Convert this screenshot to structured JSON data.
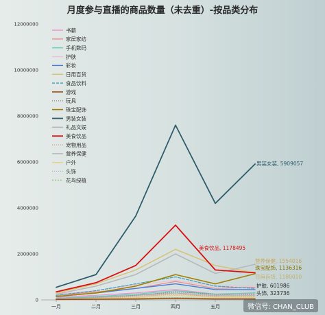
{
  "chart_data": {
    "type": "line",
    "title": "月度参与直播的商品数量（未去重）-按品类分布",
    "xlabel": "",
    "ylabel": "",
    "categories": [
      "一月",
      "二月",
      "三月",
      "四月",
      "五月",
      "六月"
    ],
    "ylim": [
      0,
      12000000
    ],
    "yticks": [
      "0",
      "2000000",
      "4000000",
      "6000000",
      "8000000",
      "10000000",
      "12000000"
    ],
    "ytick_values": [
      0,
      2000000,
      4000000,
      6000000,
      8000000,
      10000000,
      12000000
    ],
    "legend_position": "top-left",
    "grid": false,
    "series": [
      {
        "name": "书籍",
        "color": "#f28ad0",
        "dash": "",
        "width": 1.2,
        "values": [
          120000,
          200000,
          300000,
          450000,
          250000,
          300000
        ]
      },
      {
        "name": "家居家纺",
        "color": "#e88a8a",
        "dash": "",
        "width": 1.2,
        "values": [
          200000,
          350000,
          500000,
          800000,
          500000,
          550000
        ]
      },
      {
        "name": "手机数码",
        "color": "#5fd4b8",
        "dash": "",
        "width": 1.2,
        "values": [
          80000,
          150000,
          250000,
          400000,
          250000,
          300000
        ]
      },
      {
        "name": "护肤",
        "color": "#f0c0d0",
        "dash": "",
        "width": 1.2,
        "values": [
          250000,
          400000,
          650000,
          850000,
          600000,
          601986
        ]
      },
      {
        "name": "彩妆",
        "color": "#4a7ad8",
        "dash": "",
        "width": 1.4,
        "values": [
          150000,
          300000,
          500000,
          700000,
          450000,
          450000
        ]
      },
      {
        "name": "日用百货",
        "color": "#d8c070",
        "dash": "",
        "width": 1.4,
        "values": [
          300000,
          700000,
          1300000,
          2200000,
          1500000,
          1180000
        ]
      },
      {
        "name": "食品饮料",
        "color": "#3fa0c0",
        "dash": "4,2",
        "width": 1.2,
        "values": [
          200000,
          400000,
          700000,
          1000000,
          600000,
          500000
        ]
      },
      {
        "name": "游戏",
        "color": "#a04a10",
        "dash": "",
        "width": 1.6,
        "values": [
          20000,
          30000,
          40000,
          60000,
          40000,
          40000
        ]
      },
      {
        "name": "玩具",
        "color": "#8a8a8a",
        "dash": "1,2",
        "width": 1.2,
        "values": [
          60000,
          120000,
          200000,
          350000,
          250000,
          250000
        ]
      },
      {
        "name": "珠宝配饰",
        "color": "#a08000",
        "dash": "",
        "width": 1.6,
        "values": [
          150000,
          300000,
          600000,
          1100000,
          700000,
          1136316
        ]
      },
      {
        "name": "男装女装",
        "color": "#2e5c6a",
        "dash": "",
        "width": 1.8,
        "values": [
          550000,
          1100000,
          3650000,
          7600000,
          4200000,
          5909057
        ]
      },
      {
        "name": "礼品文娱",
        "color": "#b0b0b0",
        "dash": "",
        "width": 1.0,
        "values": [
          50000,
          100000,
          200000,
          300000,
          200000,
          200000
        ]
      },
      {
        "name": "美食饮品",
        "color": "#d81010",
        "dash": "",
        "width": 1.8,
        "values": [
          350000,
          750000,
          1500000,
          3250000,
          1300000,
          1178495
        ]
      },
      {
        "name": "宠物用品",
        "color": "#e0a080",
        "dash": "1,2",
        "width": 1.2,
        "values": [
          40000,
          80000,
          150000,
          250000,
          150000,
          150000
        ]
      },
      {
        "name": "营养保健",
        "color": "#b8b8b8",
        "dash": "",
        "width": 1.6,
        "values": [
          250000,
          600000,
          1100000,
          2000000,
          1150000,
          1550000
        ]
      },
      {
        "name": "户外",
        "color": "#e8d080",
        "dash": "",
        "width": 1.2,
        "values": [
          30000,
          60000,
          100000,
          200000,
          120000,
          120000
        ]
      },
      {
        "name": "头饰",
        "color": "#b0b0b0",
        "dash": "1,2",
        "width": 1.2,
        "values": [
          60000,
          100000,
          180000,
          300000,
          180000,
          323736
        ]
      },
      {
        "name": "花鸟绿植",
        "color": "#90c070",
        "dash": "2,2",
        "width": 1.2,
        "values": [
          20000,
          40000,
          60000,
          100000,
          60000,
          60000
        ]
      }
    ],
    "annotations": [
      {
        "text": "男装女装, 5909057",
        "series": "男装女装",
        "color": "#2e5c6a"
      },
      {
        "text": "美食饮品, 1178495",
        "series": "美食饮品",
        "color": "#d81010"
      },
      {
        "text": "营养保健, 1554016",
        "series": "营养保健",
        "color": "#c8a860"
      },
      {
        "text": "珠宝配饰, 1136316",
        "series": "珠宝配饰",
        "color": "#8a7000"
      },
      {
        "text": "日用百货, 1180010",
        "series": "日用百货",
        "color": "#c0b070"
      },
      {
        "text": "护肤, 601986",
        "series": "护肤",
        "color": "#2a2a2a"
      },
      {
        "text": "头饰, 323736",
        "series": "头饰",
        "color": "#2a2a2a"
      }
    ]
  },
  "watermark": "微信号: CHAN_CLUB"
}
